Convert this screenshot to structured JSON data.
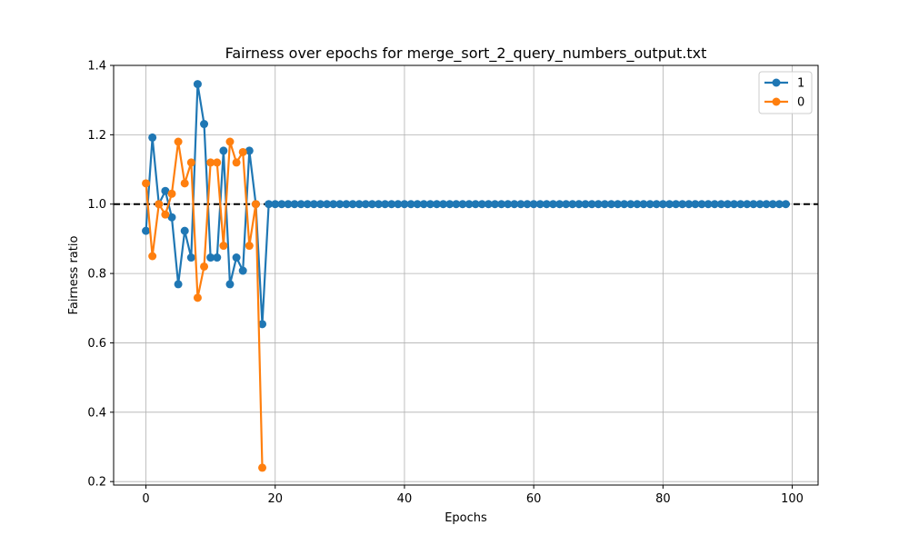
{
  "chart_data": {
    "type": "line",
    "title": "Fairness over epochs for merge_sort_2_query_numbers_output.txt",
    "xlabel": "Epochs",
    "ylabel": "Fairness ratio",
    "xlim": [
      -5,
      104
    ],
    "ylim": [
      0.19,
      1.4
    ],
    "xticks": [
      0,
      20,
      40,
      60,
      80,
      100
    ],
    "yticks": [
      0.2,
      0.4,
      0.6,
      0.8,
      1.0,
      1.2,
      1.4
    ],
    "xtick_labels": [
      "0",
      "20",
      "40",
      "60",
      "80",
      "100"
    ],
    "ytick_labels": [
      "0.2",
      "0.4",
      "0.6",
      "0.8",
      "1.0",
      "1.2",
      "1.4"
    ],
    "grid": true,
    "legend_position": "top-right",
    "reference_line": {
      "y": 1.0,
      "style": "dashed",
      "color": "#000000"
    },
    "series": [
      {
        "name": "1",
        "color": "#1f77b4",
        "x": [
          0,
          1,
          2,
          3,
          4,
          5,
          6,
          7,
          8,
          9,
          10,
          11,
          12,
          13,
          14,
          15,
          16,
          17,
          18,
          19,
          20,
          21,
          22,
          23,
          24,
          25,
          26,
          27,
          28,
          29,
          30,
          31,
          32,
          33,
          34,
          35,
          36,
          37,
          38,
          39,
          40,
          41,
          42,
          43,
          44,
          45,
          46,
          47,
          48,
          49,
          50,
          51,
          52,
          53,
          54,
          55,
          56,
          57,
          58,
          59,
          60,
          61,
          62,
          63,
          64,
          65,
          66,
          67,
          68,
          69,
          70,
          71,
          72,
          73,
          74,
          75,
          76,
          77,
          78,
          79,
          80,
          81,
          82,
          83,
          84,
          85,
          86,
          87,
          88,
          89,
          90,
          91,
          92,
          93,
          94,
          95,
          96,
          97,
          98,
          99
        ],
        "y": [
          0.923,
          1.192,
          1.0,
          1.038,
          0.962,
          0.769,
          0.923,
          0.846,
          1.346,
          1.231,
          0.846,
          0.846,
          1.154,
          0.769,
          0.846,
          0.808,
          1.154,
          1.0,
          0.654,
          1.0,
          1.0,
          1.0,
          1.0,
          1.0,
          1.0,
          1.0,
          1.0,
          1.0,
          1.0,
          1.0,
          1.0,
          1.0,
          1.0,
          1.0,
          1.0,
          1.0,
          1.0,
          1.0,
          1.0,
          1.0,
          1.0,
          1.0,
          1.0,
          1.0,
          1.0,
          1.0,
          1.0,
          1.0,
          1.0,
          1.0,
          1.0,
          1.0,
          1.0,
          1.0,
          1.0,
          1.0,
          1.0,
          1.0,
          1.0,
          1.0,
          1.0,
          1.0,
          1.0,
          1.0,
          1.0,
          1.0,
          1.0,
          1.0,
          1.0,
          1.0,
          1.0,
          1.0,
          1.0,
          1.0,
          1.0,
          1.0,
          1.0,
          1.0,
          1.0,
          1.0,
          1.0,
          1.0,
          1.0,
          1.0,
          1.0,
          1.0,
          1.0,
          1.0,
          1.0,
          1.0,
          1.0,
          1.0,
          1.0,
          1.0,
          1.0,
          1.0,
          1.0,
          1.0,
          1.0,
          1.0
        ]
      },
      {
        "name": "0",
        "color": "#ff7f0e",
        "x": [
          0,
          1,
          2,
          3,
          4,
          5,
          6,
          7,
          8,
          9,
          10,
          11,
          12,
          13,
          14,
          15,
          16,
          17,
          18
        ],
        "y": [
          1.06,
          0.85,
          1.0,
          0.97,
          1.03,
          1.18,
          1.06,
          1.12,
          0.73,
          0.82,
          1.12,
          1.12,
          0.88,
          1.18,
          1.12,
          1.15,
          0.88,
          1.0,
          0.24
        ]
      }
    ]
  }
}
